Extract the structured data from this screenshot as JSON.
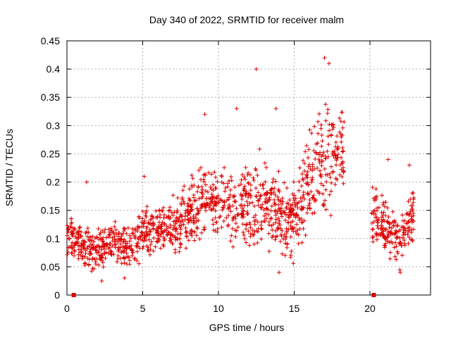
{
  "chart_data": {
    "type": "scatter",
    "title": "Day 340 of 2022, SRMTID for receiver malm",
    "xlabel": "GPS time / hours",
    "ylabel": "SRMTID / TECUs",
    "xlim": [
      0,
      24
    ],
    "ylim": [
      0,
      0.45
    ],
    "x_ticks": [
      0,
      5,
      10,
      15,
      20
    ],
    "y_ticks": [
      0,
      0.05,
      0.1,
      0.15,
      0.2,
      0.25,
      0.3,
      0.35,
      0.4,
      0.45
    ],
    "x_tick_labels": [
      "0",
      "5",
      "10",
      "15",
      "20"
    ],
    "y_tick_labels": [
      "0",
      "0.05",
      "0.1",
      "0.15",
      "0.2",
      "0.25",
      "0.3",
      "0.35",
      "0.4",
      "0.45"
    ],
    "grid": true,
    "marker": "plus",
    "color": "#dd0000",
    "envelope": [
      {
        "x": 0.0,
        "center": 0.105,
        "spread": 0.035
      },
      {
        "x": 1.0,
        "center": 0.09,
        "spread": 0.04
      },
      {
        "x": 2.0,
        "center": 0.075,
        "spread": 0.035
      },
      {
        "x": 3.0,
        "center": 0.095,
        "spread": 0.04
      },
      {
        "x": 4.0,
        "center": 0.085,
        "spread": 0.035
      },
      {
        "x": 5.0,
        "center": 0.11,
        "spread": 0.045
      },
      {
        "x": 6.0,
        "center": 0.12,
        "spread": 0.045
      },
      {
        "x": 7.0,
        "center": 0.12,
        "spread": 0.045
      },
      {
        "x": 8.0,
        "center": 0.14,
        "spread": 0.05
      },
      {
        "x": 9.0,
        "center": 0.17,
        "spread": 0.07
      },
      {
        "x": 10.0,
        "center": 0.16,
        "spread": 0.06
      },
      {
        "x": 11.0,
        "center": 0.15,
        "spread": 0.06
      },
      {
        "x": 12.0,
        "center": 0.16,
        "spread": 0.07
      },
      {
        "x": 13.0,
        "center": 0.17,
        "spread": 0.08
      },
      {
        "x": 14.0,
        "center": 0.14,
        "spread": 0.07
      },
      {
        "x": 15.0,
        "center": 0.13,
        "spread": 0.06
      },
      {
        "x": 16.0,
        "center": 0.2,
        "spread": 0.09
      },
      {
        "x": 17.0,
        "center": 0.25,
        "spread": 0.1
      },
      {
        "x": 18.0,
        "center": 0.26,
        "spread": 0.08
      },
      {
        "x": 20.2,
        "center": 0.14,
        "spread": 0.05
      },
      {
        "x": 21.0,
        "center": 0.12,
        "spread": 0.045
      },
      {
        "x": 22.0,
        "center": 0.1,
        "spread": 0.045
      },
      {
        "x": 22.8,
        "center": 0.14,
        "spread": 0.06
      }
    ],
    "segments": [
      [
        0.0,
        18.3
      ],
      [
        20.1,
        22.9
      ]
    ],
    "highlight_points": [
      {
        "x": 17.0,
        "y": 0.42
      },
      {
        "x": 17.3,
        "y": 0.41
      },
      {
        "x": 12.5,
        "y": 0.4
      },
      {
        "x": 9.1,
        "y": 0.32
      },
      {
        "x": 11.2,
        "y": 0.33
      },
      {
        "x": 13.8,
        "y": 0.33
      },
      {
        "x": 21.2,
        "y": 0.24
      },
      {
        "x": 22.6,
        "y": 0.23
      },
      {
        "x": 5.1,
        "y": 0.21
      },
      {
        "x": 1.3,
        "y": 0.2
      },
      {
        "x": 14.0,
        "y": 0.04
      },
      {
        "x": 2.3,
        "y": 0.025
      },
      {
        "x": 22.0,
        "y": 0.04
      },
      {
        "x": 3.8,
        "y": 0.03
      }
    ],
    "zero_markers": [
      {
        "x": 0.45,
        "y": 0
      },
      {
        "x": 20.25,
        "y": 0
      }
    ]
  }
}
